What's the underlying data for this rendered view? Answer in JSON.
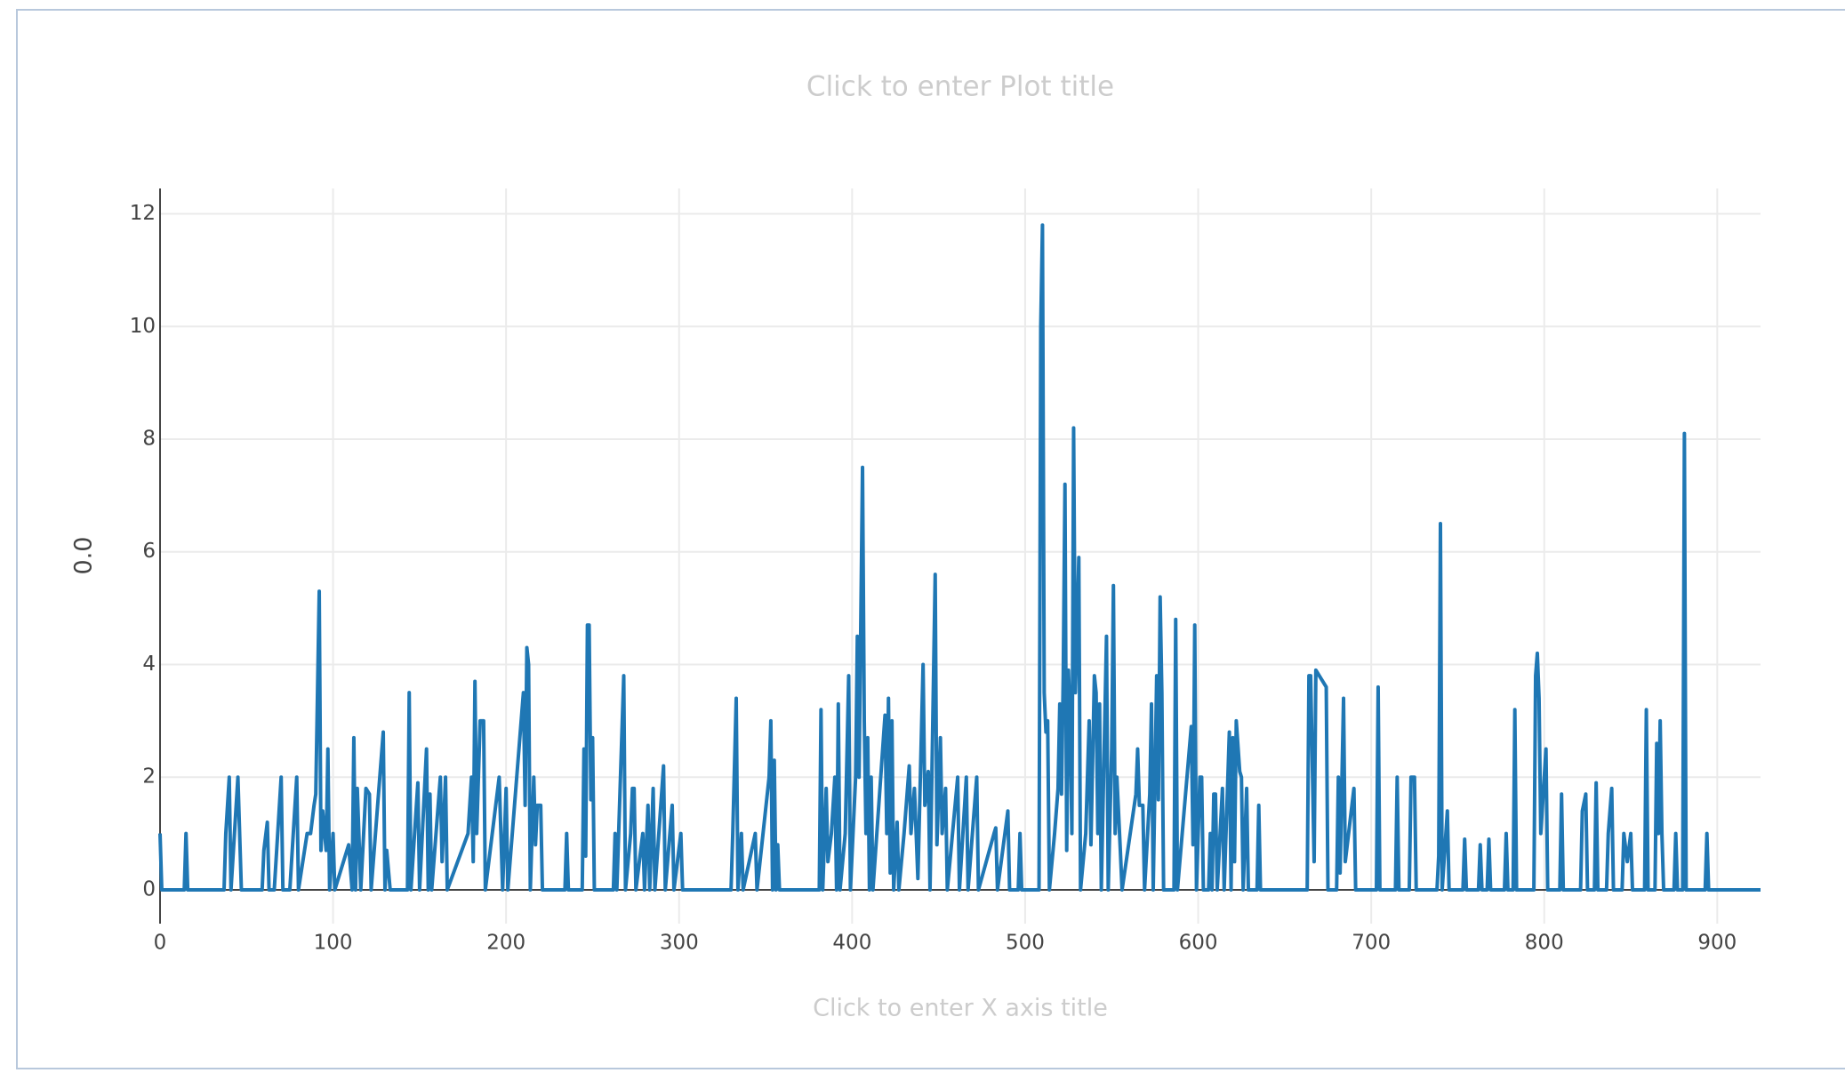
{
  "chart_data": {
    "type": "line",
    "title": "Click to enter Plot title",
    "xlabel": "Click to enter X axis title",
    "ylabel": "0.0",
    "xlim": [
      0,
      925
    ],
    "ylim": [
      -0.6,
      12.45
    ],
    "xticks": [
      0,
      100,
      200,
      300,
      400,
      500,
      600,
      700,
      800,
      900
    ],
    "yticks": [
      0,
      2,
      4,
      6,
      8,
      10,
      12
    ],
    "grid": true,
    "x": [
      0,
      1,
      14,
      15,
      16,
      37,
      38,
      40,
      41,
      45,
      47,
      59,
      60,
      62,
      63,
      66,
      68,
      70,
      71,
      75,
      79,
      80,
      85,
      87,
      89,
      90,
      92,
      93,
      94,
      96,
      97,
      98,
      100,
      101,
      109,
      111,
      112,
      113,
      114,
      116,
      119,
      121,
      122,
      129,
      130,
      131,
      133,
      143,
      144,
      145,
      149,
      150,
      154,
      155,
      156,
      157,
      162,
      163,
      165,
      166,
      178,
      180,
      181,
      182,
      183,
      185,
      187,
      188,
      196,
      197,
      198,
      200,
      201,
      210,
      211,
      212,
      213,
      214,
      216,
      217,
      218,
      220,
      221,
      234,
      235,
      236,
      244,
      245,
      246,
      247,
      248,
      249,
      250,
      251,
      262,
      263,
      264,
      268,
      269,
      272,
      273,
      274,
      275,
      279,
      280,
      282,
      283,
      285,
      286,
      291,
      292,
      296,
      297,
      301,
      302,
      330,
      331,
      333,
      334,
      336,
      337,
      344,
      345,
      352,
      353,
      354,
      355,
      356,
      357,
      358,
      362,
      381,
      382,
      383,
      385,
      386,
      388,
      390,
      391,
      392,
      393,
      396,
      398,
      399,
      402,
      403,
      404,
      406,
      407,
      408,
      409,
      410,
      411,
      412,
      419,
      420,
      421,
      422,
      423,
      424,
      426,
      427,
      430,
      433,
      434,
      436,
      438,
      441,
      442,
      444,
      445,
      448,
      449,
      451,
      452,
      454,
      455,
      461,
      462,
      466,
      467,
      472,
      473,
      482,
      483,
      484,
      490,
      491,
      496,
      497,
      498,
      508,
      509,
      510,
      511,
      512,
      513,
      514,
      517,
      519,
      520,
      521,
      522,
      523,
      524,
      525,
      526,
      527,
      528,
      529,
      530,
      531,
      532,
      535,
      537,
      538,
      540,
      541,
      542,
      543,
      544,
      547,
      548,
      550,
      551,
      552,
      553,
      555,
      556,
      564,
      565,
      566,
      568,
      569,
      572,
      573,
      574,
      576,
      577,
      578,
      579,
      580,
      586,
      587,
      588,
      596,
      597,
      598,
      599,
      601,
      602,
      603,
      606,
      607,
      608,
      609,
      610,
      611,
      614,
      615,
      618,
      619,
      620,
      621,
      622,
      624,
      625,
      626,
      628,
      629,
      634,
      635,
      636,
      663,
      664,
      665,
      667,
      668,
      674,
      675,
      680,
      681,
      682,
      684,
      685,
      690,
      691,
      703,
      704,
      705,
      714,
      715,
      716,
      722,
      723,
      725,
      726,
      738,
      739,
      740,
      741,
      744,
      745,
      753,
      754,
      755,
      762,
      763,
      764,
      767,
      768,
      769,
      777,
      778,
      779,
      782,
      783,
      784,
      794,
      795,
      796,
      797,
      798,
      801,
      802,
      809,
      810,
      811,
      821,
      822,
      824,
      825,
      829,
      830,
      831,
      836,
      837,
      839,
      840,
      845,
      846,
      848,
      850,
      851,
      858,
      859,
      860,
      864,
      865,
      866,
      867,
      868,
      869,
      875,
      876,
      877,
      880,
      881,
      882,
      893,
      894,
      895,
      925
    ],
    "series": [
      {
        "color": "#1f77b4",
        "values": [
          1,
          0,
          0,
          1,
          0,
          0,
          1,
          2,
          0,
          2,
          0,
          0,
          0.7,
          1.2,
          0,
          0,
          1,
          2,
          0,
          0,
          2,
          0,
          1,
          1,
          1.5,
          1.7,
          5.3,
          0.7,
          1.4,
          0.7,
          2.5,
          0,
          1,
          0,
          0.8,
          0,
          2.7,
          0,
          1.8,
          0,
          1.8,
          1.7,
          0,
          2.8,
          0,
          0.7,
          0,
          0,
          3.5,
          0,
          1.9,
          0,
          2.5,
          0,
          1.7,
          0,
          2,
          0.5,
          2,
          0,
          1,
          2,
          0.5,
          3.7,
          1,
          3,
          3,
          0,
          2,
          1,
          0,
          1.8,
          0,
          3.5,
          1.5,
          4.3,
          4,
          0,
          2,
          0.8,
          1.5,
          1.5,
          0,
          0,
          1,
          0,
          0,
          2.5,
          0.6,
          4.7,
          4.7,
          1.6,
          2.7,
          0,
          0,
          1,
          0,
          3.8,
          0,
          1,
          1.8,
          1.8,
          0,
          1,
          0,
          1.5,
          0,
          1.8,
          0,
          2.2,
          0,
          1.5,
          0,
          1,
          0,
          0,
          1,
          3.4,
          0,
          1,
          0,
          1,
          0,
          2,
          3,
          0,
          2.3,
          0,
          0.8,
          0,
          0,
          0,
          3.2,
          0,
          1.8,
          0.5,
          1,
          2,
          0,
          3.3,
          0,
          1,
          3.8,
          0,
          2,
          4.5,
          2,
          7.5,
          3,
          1,
          2.7,
          0,
          2,
          0,
          3.1,
          1,
          3.4,
          0.3,
          3,
          0,
          1.2,
          0,
          1,
          2.2,
          1,
          1.8,
          0.2,
          4,
          1.5,
          2.1,
          0,
          5.6,
          0.8,
          2.7,
          1,
          1.8,
          0,
          2,
          0,
          2,
          0,
          2,
          0,
          1,
          1.1,
          0,
          1.4,
          0,
          0,
          1,
          0,
          0,
          10,
          11.8,
          3.5,
          2.8,
          3,
          0,
          1,
          1.8,
          3.3,
          1.7,
          3.8,
          7.2,
          0.7,
          3.9,
          3,
          1,
          8.2,
          3.5,
          4.6,
          5.9,
          0,
          1,
          3,
          0.8,
          3.8,
          3.5,
          1,
          3.3,
          0,
          4.5,
          0,
          2.5,
          5.4,
          1,
          2,
          0.7,
          0,
          1.7,
          2.5,
          1.5,
          1.5,
          0,
          1.7,
          3.3,
          0,
          3.8,
          1.6,
          5.2,
          3.5,
          0,
          0,
          4.8,
          0,
          2.9,
          0.8,
          4.7,
          0,
          2,
          2,
          0,
          0,
          1,
          0,
          1.7,
          1.7,
          0,
          1.8,
          0,
          2.8,
          0,
          2.7,
          0.5,
          3,
          2.1,
          2,
          0,
          1.8,
          0,
          0,
          1.5,
          0,
          0,
          3.8,
          3.8,
          0.5,
          3.9,
          3.6,
          0,
          0,
          2,
          0.3,
          3.4,
          0.5,
          1.8,
          0,
          0,
          3.6,
          0,
          0,
          2,
          0,
          0,
          2,
          2,
          0,
          0,
          0.6,
          6.5,
          0,
          1.4,
          0,
          0,
          0.9,
          0,
          0,
          0.8,
          0,
          0,
          0.9,
          0,
          0,
          1,
          0,
          0,
          3.2,
          0,
          0,
          3.8,
          4.2,
          3.4,
          1,
          2.5,
          0,
          0,
          1.7,
          0,
          0,
          1.4,
          1.7,
          0,
          0,
          1.9,
          0,
          0,
          1,
          1.8,
          0,
          0,
          1,
          0.5,
          1,
          0,
          0,
          3.2,
          0,
          0,
          2.6,
          1,
          3,
          1,
          0,
          0,
          1,
          0,
          0,
          8.1,
          0,
          0,
          1,
          0,
          0
        ]
      }
    ]
  }
}
